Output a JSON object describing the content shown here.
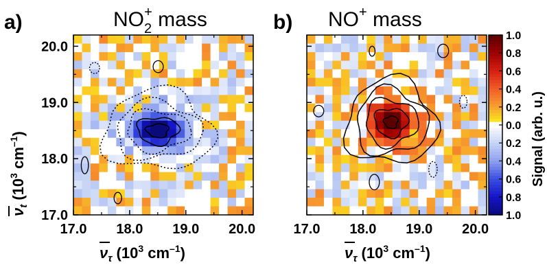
{
  "chart_data": [
    {
      "type": "heatmap",
      "panel_label": "a)",
      "title_main": "NO",
      "title_sub": "2",
      "title_sup": "+",
      "title_rest": " mass",
      "xlabel_bar": "ν",
      "xlabel_sub": "τ",
      "xlabel_rest": " (10",
      "xlabel_exp": "3",
      "xlabel_unit": " cm",
      "xlabel_unit_exp": "–1",
      "xlabel_close": ")",
      "ylabel_bar": "ν",
      "ylabel_sub": "t",
      "ylabel_rest": " (10",
      "ylabel_exp": "3",
      "ylabel_unit": " cm",
      "ylabel_unit_exp": "–1",
      "ylabel_close": ")",
      "xlim": [
        17.0,
        20.2
      ],
      "ylim": [
        17.0,
        20.2
      ],
      "xticks": [
        "17.0",
        "18.0",
        "19.0",
        "20.0"
      ],
      "yticks": [
        "17.0",
        "18.0",
        "19.0",
        "20.0"
      ],
      "peak": {
        "x": 18.5,
        "y": 18.5,
        "value": -0.9
      },
      "feature": "negative signal (blue) centred near 18.5, 18.5 with dotted and solid contours"
    },
    {
      "type": "heatmap",
      "panel_label": "b)",
      "title_main": "NO",
      "title_sup": "+",
      "title_rest": " mass",
      "xlabel_bar": "ν",
      "xlabel_sub": "τ",
      "xlabel_rest": " (10",
      "xlabel_exp": "3",
      "xlabel_unit": " cm",
      "xlabel_unit_exp": "–1",
      "xlabel_close": ")",
      "xlim": [
        17.0,
        20.2
      ],
      "ylim": [
        17.0,
        20.2
      ],
      "xticks": [
        "17.0",
        "18.0",
        "19.0",
        "20.0"
      ],
      "peak": {
        "x": 18.5,
        "y": 18.65,
        "value": 1.0
      },
      "feature": "positive signal (red) centred near 18.5, 18.65 with solid contours"
    }
  ],
  "colorbar": {
    "label": "Signal (arb. u.)",
    "ticks": [
      "1.0",
      "0.8",
      "0.6",
      "0.4",
      "0.2",
      "0.0",
      "0.2",
      "0.4",
      "0.6",
      "0.8",
      "1.0"
    ],
    "range": [
      -1.0,
      1.0
    ],
    "colors": [
      "#5a0000",
      "#9b0000",
      "#d71f12",
      "#f15d28",
      "#f7a12e",
      "#fbe11e",
      "#ffffff",
      "#c6d4f5",
      "#8fa1ef",
      "#3b4fe0",
      "#1414c8",
      "#0a0a7a"
    ]
  }
}
